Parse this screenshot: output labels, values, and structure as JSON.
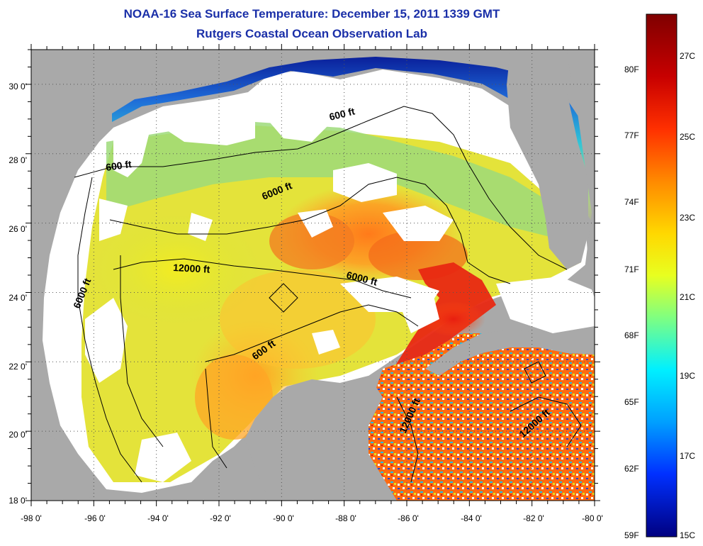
{
  "header": {
    "title": "NOAA-16 Sea Surface Temperature:  December 15, 2011 1339 GMT",
    "subtitle": "Rutgers Coastal Ocean Observation Lab"
  },
  "map": {
    "lon_ticks": [
      "-98 0'",
      "-96 0'",
      "-94 0'",
      "-92 0'",
      "-90 0'",
      "-88 0'",
      "-86 0'",
      "-84 0'",
      "-82 0'",
      "-80 0'"
    ],
    "lat_ticks": [
      "30 0'",
      "28 0'",
      "26 0'",
      "24 0'",
      "22 0'",
      "20 0'",
      "18 0'"
    ],
    "lon_range": [
      -98,
      -80
    ],
    "lat_range": [
      18,
      31
    ],
    "contour_labels": [
      "600 ft",
      "600 ft",
      "6000 ft",
      "12000 ft",
      "6000 ft",
      "6000 ft",
      "600 ft",
      "12000 ft",
      "12000 ft"
    ],
    "colors": {
      "land": "#a9a9a9",
      "cloud": "#ffffff",
      "contour": "#000000"
    }
  },
  "colorbar": {
    "fahrenheit_labels": [
      "80F",
      "77F",
      "74F",
      "71F",
      "68F",
      "65F",
      "62F",
      "59F"
    ],
    "celsius_labels": [
      "27C",
      "25C",
      "23C",
      "21C",
      "19C",
      "17C",
      "15C"
    ],
    "colors": [
      "#7f0000",
      "#ff0000",
      "#ff8000",
      "#ffff00",
      "#80ff80",
      "#00ffff",
      "#0080ff",
      "#0000ff",
      "#00008f"
    ]
  }
}
